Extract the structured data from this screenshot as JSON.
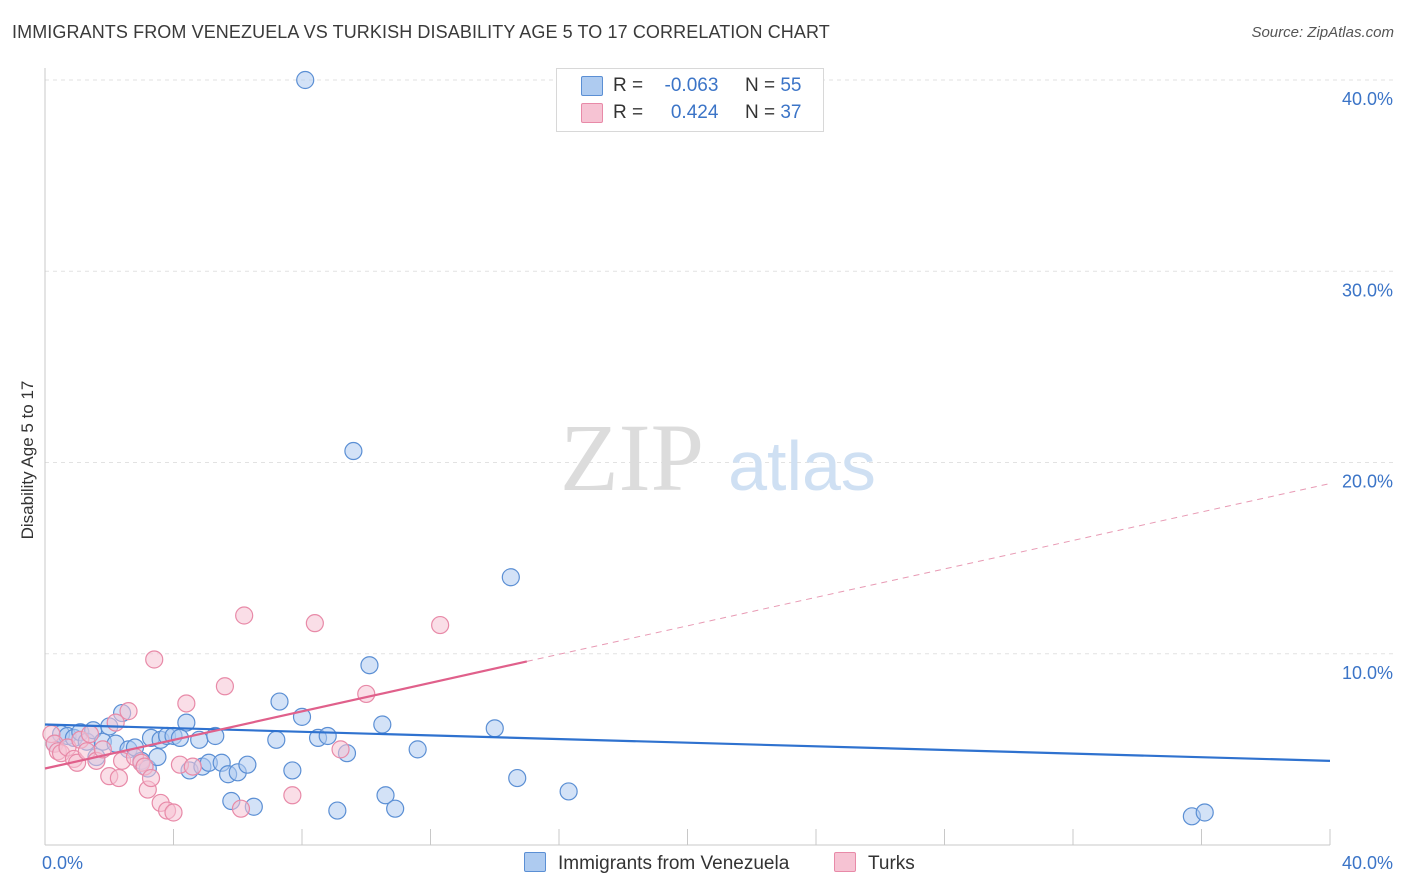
{
  "header": {
    "title": "IMMIGRANTS FROM VENEZUELA VS TURKISH DISABILITY AGE 5 TO 17 CORRELATION CHART",
    "source": "Source: ZipAtlas.com"
  },
  "watermark": {
    "zip": "ZIP",
    "atlas": "atlas"
  },
  "legend": {
    "rows": [
      {
        "r_label": "R =",
        "r_value": "-0.063",
        "n_label": "N =",
        "n_value": "55"
      },
      {
        "r_label": "R =",
        "r_value": "0.424",
        "n_label": "N =",
        "n_value": "37"
      }
    ]
  },
  "bottom_legend": {
    "items": [
      {
        "label": "Immigrants from Venezuela"
      },
      {
        "label": "Turks"
      }
    ]
  },
  "chart_data": {
    "type": "scatter",
    "title": "IMMIGRANTS FROM VENEZUELA VS TURKISH DISABILITY AGE 5 TO 17 CORRELATION CHART",
    "xlabel": "",
    "ylabel": "Disability Age 5 to 17",
    "xlim": [
      0,
      40
    ],
    "ylim": [
      0,
      40
    ],
    "x_tick_labels": [
      "0.0%",
      "40.0%"
    ],
    "y_ticks": [
      10,
      20,
      30,
      40
    ],
    "y_tick_labels": [
      "10.0%",
      "20.0%",
      "30.0%",
      "40.0%"
    ],
    "grid": true,
    "legend_position": "top-center",
    "series": [
      {
        "name": "Immigrants from Venezuela",
        "color": "#5b8fd4",
        "fill": "#aecbf0",
        "r": -0.063,
        "n": 55,
        "trend": {
          "x": [
            0,
            40
          ],
          "y": [
            6.3,
            4.4
          ],
          "style": "solid"
        },
        "points": [
          [
            0.3,
            5.3
          ],
          [
            0.5,
            5.8
          ],
          [
            0.7,
            5.7
          ],
          [
            0.9,
            5.6
          ],
          [
            1.1,
            5.9
          ],
          [
            1.3,
            5.4
          ],
          [
            1.5,
            6.0
          ],
          [
            1.6,
            4.6
          ],
          [
            1.8,
            5.4
          ],
          [
            2.0,
            6.2
          ],
          [
            2.2,
            5.3
          ],
          [
            2.4,
            6.9
          ],
          [
            2.6,
            5.0
          ],
          [
            2.8,
            5.1
          ],
          [
            3.0,
            4.4
          ],
          [
            3.2,
            4.0
          ],
          [
            3.3,
            5.6
          ],
          [
            3.5,
            4.6
          ],
          [
            3.6,
            5.5
          ],
          [
            3.8,
            5.7
          ],
          [
            4.0,
            5.7
          ],
          [
            4.2,
            5.6
          ],
          [
            4.4,
            6.4
          ],
          [
            4.5,
            3.9
          ],
          [
            4.8,
            5.5
          ],
          [
            4.9,
            4.1
          ],
          [
            5.1,
            4.3
          ],
          [
            5.3,
            5.7
          ],
          [
            5.5,
            4.3
          ],
          [
            5.7,
            3.7
          ],
          [
            5.8,
            2.3
          ],
          [
            6.0,
            3.8
          ],
          [
            6.3,
            4.2
          ],
          [
            6.5,
            2.0
          ],
          [
            7.2,
            5.5
          ],
          [
            7.3,
            7.5
          ],
          [
            7.7,
            3.9
          ],
          [
            8.0,
            6.7
          ],
          [
            8.5,
            5.6
          ],
          [
            8.8,
            5.7
          ],
          [
            9.1,
            1.8
          ],
          [
            9.4,
            4.8
          ],
          [
            9.6,
            20.6
          ],
          [
            10.1,
            9.4
          ],
          [
            10.5,
            6.3
          ],
          [
            10.6,
            2.6
          ],
          [
            10.9,
            1.9
          ],
          [
            11.6,
            5.0
          ],
          [
            14.0,
            6.1
          ],
          [
            14.5,
            14.0
          ],
          [
            14.7,
            3.5
          ],
          [
            16.3,
            2.8
          ],
          [
            35.7,
            1.5
          ],
          [
            36.1,
            1.7
          ],
          [
            8.1,
            40.0
          ]
        ]
      },
      {
        "name": "Turks",
        "color": "#e88aa8",
        "fill": "#f6c3d3",
        "r": 0.424,
        "n": 37,
        "trend": {
          "x": [
            0,
            15
          ],
          "y": [
            4.0,
            9.6
          ],
          "style": "solid",
          "extended": {
            "x": [
              15,
              40
            ],
            "y": [
              9.6,
              18.9
            ],
            "style": "dashed"
          }
        },
        "points": [
          [
            0.2,
            5.8
          ],
          [
            0.3,
            5.3
          ],
          [
            0.4,
            4.9
          ],
          [
            0.5,
            4.8
          ],
          [
            0.7,
            5.1
          ],
          [
            0.9,
            4.5
          ],
          [
            1.0,
            4.3
          ],
          [
            1.1,
            5.5
          ],
          [
            1.3,
            4.9
          ],
          [
            1.4,
            5.8
          ],
          [
            1.6,
            4.4
          ],
          [
            1.8,
            5.0
          ],
          [
            2.0,
            3.6
          ],
          [
            2.2,
            6.4
          ],
          [
            2.3,
            3.5
          ],
          [
            2.4,
            4.4
          ],
          [
            2.6,
            7.0
          ],
          [
            2.8,
            4.6
          ],
          [
            3.0,
            4.3
          ],
          [
            3.1,
            4.1
          ],
          [
            3.2,
            2.9
          ],
          [
            3.3,
            3.5
          ],
          [
            3.4,
            9.7
          ],
          [
            3.6,
            2.2
          ],
          [
            3.8,
            1.8
          ],
          [
            4.0,
            1.7
          ],
          [
            4.2,
            4.2
          ],
          [
            4.4,
            7.4
          ],
          [
            4.6,
            4.1
          ],
          [
            5.6,
            8.3
          ],
          [
            6.1,
            1.9
          ],
          [
            6.2,
            12.0
          ],
          [
            7.7,
            2.6
          ],
          [
            8.4,
            11.6
          ],
          [
            9.2,
            5.0
          ],
          [
            10.0,
            7.9
          ],
          [
            12.3,
            11.5
          ]
        ]
      }
    ]
  }
}
